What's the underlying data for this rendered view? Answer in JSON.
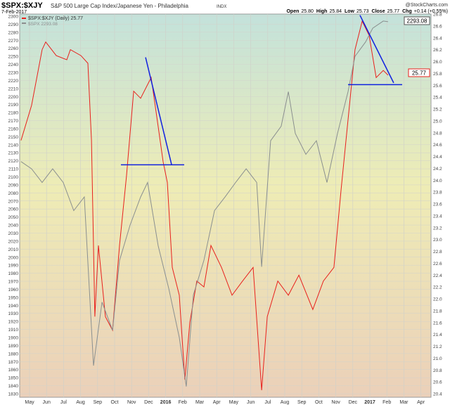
{
  "header": {
    "symbol": "$SPX:$XJY",
    "description": "S&P 500 Large Cap Index/Japanese Yen - Philadelphia",
    "exchange": "INDX",
    "date": "7-Feb-2017",
    "brand": "@StockCharts.com",
    "quote": {
      "open_label": "Open",
      "open": "25.80",
      "high_label": "High",
      "high": "25.84",
      "low_label": "Low",
      "low": "25.73",
      "close_label": "Close",
      "close": "25.77",
      "chg_label": "Chg",
      "chg": "+0.14 (+0.55%)"
    }
  },
  "chart_data": {
    "type": "line",
    "title": "$SPX:$XJY S&P 500 Large Cap Index/Japanese Yen - Philadelphia INDX",
    "x_unit": "months since May 2015",
    "x_ticks": [
      "May",
      "Jun",
      "Jul",
      "Aug",
      "Sep",
      "Oct",
      "Nov",
      "Dec",
      "2016",
      "Feb",
      "Mar",
      "Apr",
      "May",
      "Jun",
      "Jul",
      "Aug",
      "Sep",
      "Oct",
      "Nov",
      "Dec",
      "2017",
      "Feb",
      "Mar",
      "Apr"
    ],
    "left_axis": {
      "ylim": [
        1830,
        2300
      ],
      "step": 10
    },
    "right_axis": {
      "ylim": [
        20.4,
        26.8
      ],
      "step": 0.2
    },
    "grid": true,
    "legend": {
      "placement": "top-left",
      "items": [
        "$SPX:$XJY (Daily) 25.77",
        "$SPX 2293.08"
      ]
    },
    "last_value_tags": {
      "left": "2293.08",
      "right": "25.77"
    },
    "series": [
      {
        "name": "$SPX:$XJY (Daily)",
        "axis": "right",
        "color": "#e8201c",
        "x": [
          -0.5,
          0.12,
          0.74,
          0.95,
          1.57,
          2.19,
          2.4,
          3.02,
          3.43,
          3.64,
          3.84,
          4.05,
          4.46,
          4.88,
          5.29,
          5.7,
          6.12,
          6.53,
          7.15,
          7.56,
          7.85,
          8.1,
          8.39,
          8.8,
          9.13,
          9.42,
          9.83,
          10.25,
          10.66,
          11.28,
          11.9,
          12.52,
          13.14,
          13.64,
          13.97,
          14.59,
          15.21,
          15.83,
          16.65,
          17.27,
          17.89,
          18.31,
          18.72,
          19.13,
          19.55,
          19.96,
          20.37,
          20.79,
          21.07
        ],
        "y": [
          24.67,
          25.26,
          26.2,
          26.33,
          26.1,
          26.03,
          26.2,
          26.1,
          25.97,
          24.67,
          21.7,
          22.9,
          21.7,
          21.47,
          22.9,
          24.07,
          25.5,
          25.38,
          25.73,
          24.9,
          24.31,
          23.96,
          22.53,
          22.06,
          20.64,
          21.6,
          22.3,
          22.2,
          22.9,
          22.53,
          22.06,
          22.3,
          22.53,
          20.46,
          21.7,
          22.3,
          22.06,
          22.4,
          21.82,
          22.3,
          22.53,
          23.84,
          25.02,
          26.2,
          26.68,
          26.44,
          25.73,
          25.85,
          25.77
        ]
      },
      {
        "name": "$SPX",
        "axis": "left",
        "color": "#8a8f8f",
        "x": [
          -0.5,
          0.12,
          0.74,
          1.36,
          1.98,
          2.6,
          3.22,
          3.76,
          4.26,
          4.88,
          5.29,
          5.91,
          6.53,
          6.94,
          7.56,
          8.18,
          8.8,
          9.21,
          9.63,
          10.25,
          10.87,
          11.49,
          12.11,
          12.73,
          13.35,
          13.64,
          14.17,
          14.79,
          15.21,
          15.62,
          16.24,
          16.86,
          17.48,
          18.1,
          18.72,
          19.13,
          19.75,
          20.17,
          20.79,
          21.07
        ],
        "y": [
          2119,
          2110,
          2093,
          2110,
          2093,
          2058,
          2075,
          1865,
          1944,
          1909,
          1996,
          2040,
          2075,
          2093,
          2014,
          1961,
          1900,
          1839,
          1953,
          1996,
          2058,
          2075,
          2093,
          2110,
          2093,
          1988,
          2145,
          2163,
          2206,
          2154,
          2128,
          2145,
          2093,
          2154,
          2206,
          2250,
          2268,
          2285,
          2294,
          2293.08
        ]
      }
    ],
    "annotations": [
      {
        "type": "trendline",
        "axis": "right",
        "x": [
          6.82,
          8.35
        ],
        "y": [
          26.07,
          24.26
        ]
      },
      {
        "type": "support",
        "axis": "right",
        "x": [
          5.37,
          9.09
        ],
        "y": [
          24.26,
          24.26
        ]
      },
      {
        "type": "trendline",
        "axis": "right",
        "x": [
          19.42,
          21.4
        ],
        "y": [
          26.78,
          25.64
        ]
      },
      {
        "type": "support",
        "axis": "right",
        "x": [
          18.72,
          21.9
        ],
        "y": [
          25.61,
          25.61
        ]
      }
    ]
  }
}
